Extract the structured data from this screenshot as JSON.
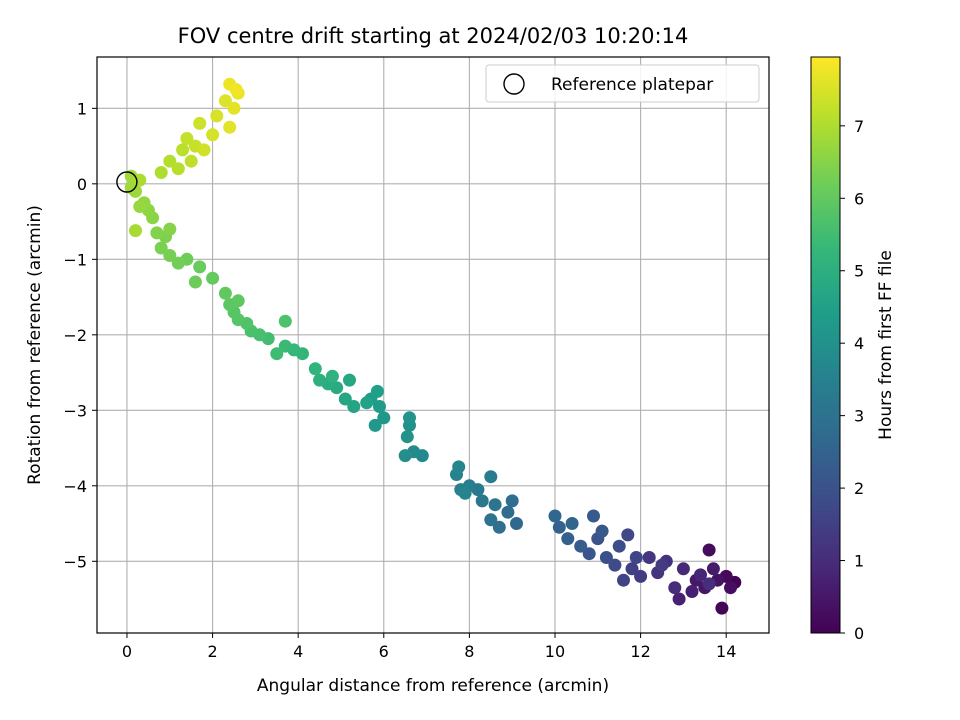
{
  "chart_data": {
    "type": "scatter",
    "title": "FOV centre drift starting at 2024/02/03 10:20:14",
    "xlabel": "Angular distance from reference (arcmin)",
    "ylabel": "Rotation from reference (arcmin)",
    "xlim": [
      -0.7,
      15.0
    ],
    "ylim": [
      -5.95,
      1.68
    ],
    "x_ticks": [
      0,
      2,
      4,
      6,
      8,
      10,
      12,
      14
    ],
    "x_tick_labels": [
      "0",
      "2",
      "4",
      "6",
      "8",
      "10",
      "12",
      "14"
    ],
    "y_ticks": [
      1,
      0,
      -1,
      -2,
      -3,
      -4,
      -5
    ],
    "y_tick_labels": [
      "1",
      "0",
      "−1",
      "−2",
      "−3",
      "−4",
      "−5"
    ],
    "grid": true,
    "legend": {
      "position": "top-right",
      "entries": [
        "Reference platepar"
      ]
    },
    "reference_point": {
      "x": 0,
      "y": 0
    },
    "colorbar": {
      "label": "Hours from first FF file",
      "range": [
        0,
        7.95
      ],
      "ticks": [
        0,
        1,
        2,
        3,
        4,
        5,
        6,
        7
      ],
      "tick_labels": [
        "0",
        "1",
        "2",
        "3",
        "4",
        "5",
        "6",
        "7"
      ],
      "colormap": "viridis"
    },
    "points": [
      [
        14.2,
        -5.28,
        0.02
      ],
      [
        13.9,
        -5.62,
        0.08
      ],
      [
        14.0,
        -5.2,
        0.15
      ],
      [
        13.6,
        -4.85,
        0.22
      ],
      [
        14.1,
        -5.35,
        0.3
      ],
      [
        13.8,
        -5.25,
        0.38
      ],
      [
        13.5,
        -5.35,
        0.45
      ],
      [
        13.3,
        -5.25,
        0.52
      ],
      [
        13.7,
        -5.1,
        0.6
      ],
      [
        13.2,
        -5.4,
        0.68
      ],
      [
        12.9,
        -5.5,
        0.75
      ],
      [
        13.4,
        -5.18,
        0.82
      ],
      [
        13.0,
        -5.1,
        0.9
      ],
      [
        12.8,
        -5.35,
        0.98
      ],
      [
        13.6,
        -5.3,
        1.05
      ],
      [
        12.6,
        -5.0,
        1.12
      ],
      [
        12.4,
        -5.15,
        1.2
      ],
      [
        12.2,
        -4.95,
        1.28
      ],
      [
        12.5,
        -5.05,
        1.35
      ],
      [
        12.0,
        -5.2,
        1.42
      ],
      [
        11.8,
        -5.1,
        1.5
      ],
      [
        11.6,
        -5.25,
        1.58
      ],
      [
        11.9,
        -4.95,
        1.65
      ],
      [
        11.7,
        -4.65,
        1.72
      ],
      [
        11.4,
        -5.05,
        1.8
      ],
      [
        11.5,
        -4.8,
        1.88
      ],
      [
        11.2,
        -4.95,
        1.95
      ],
      [
        11.0,
        -4.7,
        2.02
      ],
      [
        10.8,
        -4.9,
        2.1
      ],
      [
        11.1,
        -4.6,
        2.18
      ],
      [
        10.9,
        -4.4,
        2.25
      ],
      [
        10.6,
        -4.8,
        2.32
      ],
      [
        10.3,
        -4.7,
        2.4
      ],
      [
        10.1,
        -4.55,
        2.48
      ],
      [
        10.4,
        -4.5,
        2.55
      ],
      [
        10.0,
        -4.4,
        2.62
      ],
      [
        9.1,
        -4.5,
        2.7
      ],
      [
        8.9,
        -4.35,
        2.78
      ],
      [
        9.0,
        -4.2,
        2.85
      ],
      [
        8.7,
        -4.55,
        2.92
      ],
      [
        8.5,
        -4.45,
        3.0
      ],
      [
        8.6,
        -4.25,
        3.08
      ],
      [
        8.3,
        -4.2,
        3.15
      ],
      [
        8.2,
        -4.05,
        3.22
      ],
      [
        8.5,
        -3.88,
        3.3
      ],
      [
        8.0,
        -4.0,
        3.38
      ],
      [
        7.8,
        -4.05,
        3.45
      ],
      [
        7.7,
        -3.85,
        3.52
      ],
      [
        7.9,
        -4.1,
        3.6
      ],
      [
        7.75,
        -3.75,
        3.68
      ],
      [
        6.9,
        -3.6,
        3.75
      ],
      [
        6.7,
        -3.55,
        3.82
      ],
      [
        6.5,
        -3.6,
        3.9
      ],
      [
        6.6,
        -3.2,
        3.98
      ],
      [
        6.55,
        -3.35,
        4.05
      ],
      [
        6.6,
        -3.1,
        4.1
      ],
      [
        6.0,
        -3.1,
        4.18
      ],
      [
        5.8,
        -3.2,
        4.25
      ],
      [
        5.9,
        -2.95,
        4.32
      ],
      [
        5.7,
        -2.85,
        4.4
      ],
      [
        5.85,
        -2.75,
        4.48
      ],
      [
        5.6,
        -2.9,
        4.55
      ],
      [
        5.3,
        -2.95,
        4.62
      ],
      [
        5.1,
        -2.85,
        4.7
      ],
      [
        5.2,
        -2.6,
        4.78
      ],
      [
        4.9,
        -2.7,
        4.85
      ],
      [
        4.7,
        -2.65,
        4.92
      ],
      [
        4.5,
        -2.6,
        5.0
      ],
      [
        4.8,
        -2.55,
        5.08
      ],
      [
        4.4,
        -2.45,
        5.15
      ],
      [
        4.1,
        -2.25,
        5.22
      ],
      [
        3.9,
        -2.2,
        5.3
      ],
      [
        3.7,
        -2.15,
        5.38
      ],
      [
        3.5,
        -2.25,
        5.45
      ],
      [
        3.3,
        -2.05,
        5.52
      ],
      [
        3.1,
        -2.0,
        5.6
      ],
      [
        2.9,
        -1.95,
        5.65
      ],
      [
        3.7,
        -1.82,
        5.7
      ],
      [
        2.8,
        -1.85,
        5.75
      ],
      [
        2.6,
        -1.8,
        5.8
      ],
      [
        2.5,
        -1.7,
        5.85
      ],
      [
        2.4,
        -1.6,
        5.9
      ],
      [
        2.6,
        -1.55,
        5.95
      ],
      [
        2.3,
        -1.45,
        6.0
      ],
      [
        2.0,
        -1.25,
        6.05
      ],
      [
        1.7,
        -1.1,
        6.1
      ],
      [
        1.6,
        -1.3,
        6.15
      ],
      [
        1.4,
        -1.0,
        6.2
      ],
      [
        1.2,
        -1.05,
        6.25
      ],
      [
        1.0,
        -0.95,
        6.3
      ],
      [
        0.8,
        -0.85,
        6.35
      ],
      [
        0.9,
        -0.7,
        6.4
      ],
      [
        0.7,
        -0.65,
        6.45
      ],
      [
        1.0,
        -0.6,
        6.5
      ],
      [
        0.6,
        -0.45,
        6.55
      ],
      [
        0.5,
        -0.35,
        6.6
      ],
      [
        0.4,
        -0.25,
        6.65
      ],
      [
        0.3,
        -0.3,
        6.7
      ],
      [
        0.2,
        -0.1,
        6.75
      ],
      [
        0.1,
        -0.05,
        6.8
      ],
      [
        0.1,
        0.1,
        6.85
      ],
      [
        0.2,
        -0.62,
        6.9
      ],
      [
        0.3,
        0.05,
        6.95
      ],
      [
        0.8,
        0.15,
        7.0
      ],
      [
        1.0,
        0.3,
        7.05
      ],
      [
        1.2,
        0.2,
        7.1
      ],
      [
        1.3,
        0.45,
        7.15
      ],
      [
        1.5,
        0.3,
        7.2
      ],
      [
        1.4,
        0.6,
        7.25
      ],
      [
        1.6,
        0.5,
        7.3
      ],
      [
        1.7,
        0.8,
        7.35
      ],
      [
        1.8,
        0.45,
        7.4
      ],
      [
        2.0,
        0.65,
        7.45
      ],
      [
        2.1,
        0.9,
        7.5
      ],
      [
        2.3,
        1.1,
        7.55
      ],
      [
        2.4,
        0.75,
        7.6
      ],
      [
        2.5,
        1.0,
        7.65
      ],
      [
        2.6,
        1.2,
        7.7
      ],
      [
        2.4,
        1.32,
        7.75
      ],
      [
        2.55,
        1.25,
        7.8
      ]
    ]
  }
}
